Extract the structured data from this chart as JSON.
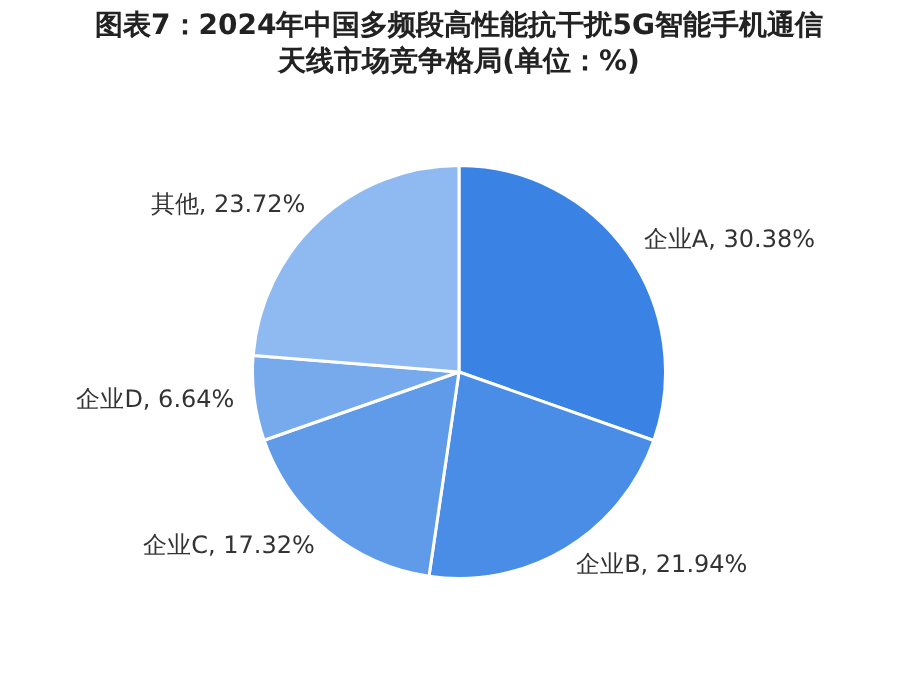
{
  "chart_data": {
    "type": "pie",
    "title": "图表7：2024年中国多频段高性能抗干扰5G智能手机通信天线市场竞争格局(单位：%)",
    "categories": [
      "企业A",
      "企业B",
      "企业C",
      "企业D",
      "其他"
    ],
    "values": [
      30.38,
      21.94,
      17.32,
      6.64,
      23.72
    ],
    "value_labels": [
      ", 30.38%",
      ", 21.94%",
      ", 17.32%",
      ", 6.64%",
      ", 23.72%"
    ],
    "colors": [
      "#3a82e3",
      "#4a8de6",
      "#5f9be9",
      "#76aaed",
      "#8fbaf1"
    ],
    "legend": false
  }
}
